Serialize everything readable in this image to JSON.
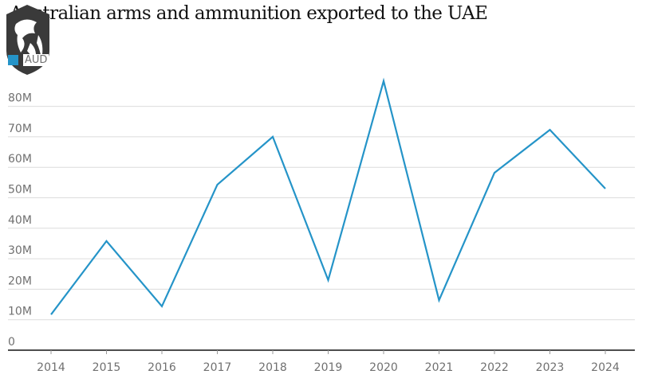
{
  "chart_data": {
    "type": "line",
    "title": "Australian arms and ammunition exported to the UAE",
    "legend": [
      {
        "name": "AUD",
        "color": "#2594c8"
      }
    ],
    "legend_placement": "top-left",
    "x": [
      2014,
      2015,
      2016,
      2017,
      2018,
      2019,
      2020,
      2021,
      2022,
      2023,
      2024
    ],
    "series": [
      {
        "name": "AUD",
        "color": "#2594c8",
        "values": [
          11700000,
          35800000,
          14400000,
          54300000,
          70000000,
          23000000,
          88300000,
          16400000,
          58200000,
          72300000,
          53000000
        ]
      }
    ],
    "ylim": [
      0,
      80000000
    ],
    "yticks": [
      0,
      10000000,
      20000000,
      30000000,
      40000000,
      50000000,
      60000000,
      70000000,
      80000000
    ],
    "ytick_labels": [
      "0",
      "10M",
      "20M",
      "30M",
      "40M",
      "50M",
      "60M",
      "70M",
      "80M"
    ],
    "xtick_labels": [
      "2014",
      "2015",
      "2016",
      "2017",
      "2018",
      "2019",
      "2020",
      "2021",
      "2022",
      "2023",
      "2024"
    ],
    "grid": true,
    "xlabel": "",
    "ylabel": ""
  },
  "watermark": {
    "icon": "lion-shield-logo"
  }
}
